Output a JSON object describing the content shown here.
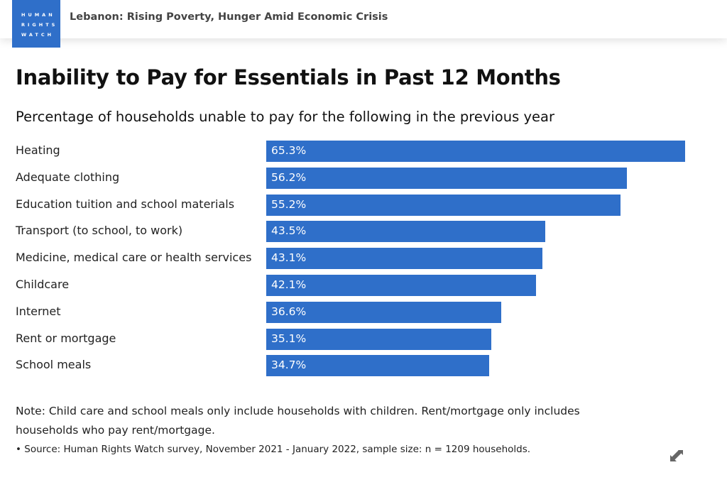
{
  "header": {
    "logo_lines": [
      "HUMAN",
      "RIGHTS",
      "WATCH"
    ],
    "headline": "Lebanon: Rising Poverty, Hunger Amid Economic Crisis"
  },
  "chart_data": {
    "type": "bar",
    "orientation": "horizontal",
    "title": "Inability to Pay for Essentials in Past 12 Months",
    "subtitle": "Percentage of households unable to pay for the following in the previous year",
    "categories": [
      "Heating",
      "Adequate clothing",
      "Education tuition and school materials",
      "Transport (to school, to work)",
      "Medicine, medical care or health services",
      "Childcare",
      "Internet",
      "Rent or mortgage",
      "School meals"
    ],
    "values": [
      65.3,
      56.2,
      55.2,
      43.5,
      43.1,
      42.1,
      36.6,
      35.1,
      34.7
    ],
    "value_labels": [
      "65.3%",
      "56.2%",
      "55.2%",
      "43.5%",
      "43.1%",
      "42.1%",
      "36.6%",
      "35.1%",
      "34.7%"
    ],
    "xlim": [
      0,
      65.3
    ],
    "bar_color": "#2f6fc9"
  },
  "footer": {
    "note": "Note: Child care and school meals only include households with children. Rent/mortgage only includes households who pay rent/mortgage.",
    "source": "• Source: Human Rights Watch survey, November 2021 - January 2022, sample size: n = 1209 households."
  }
}
